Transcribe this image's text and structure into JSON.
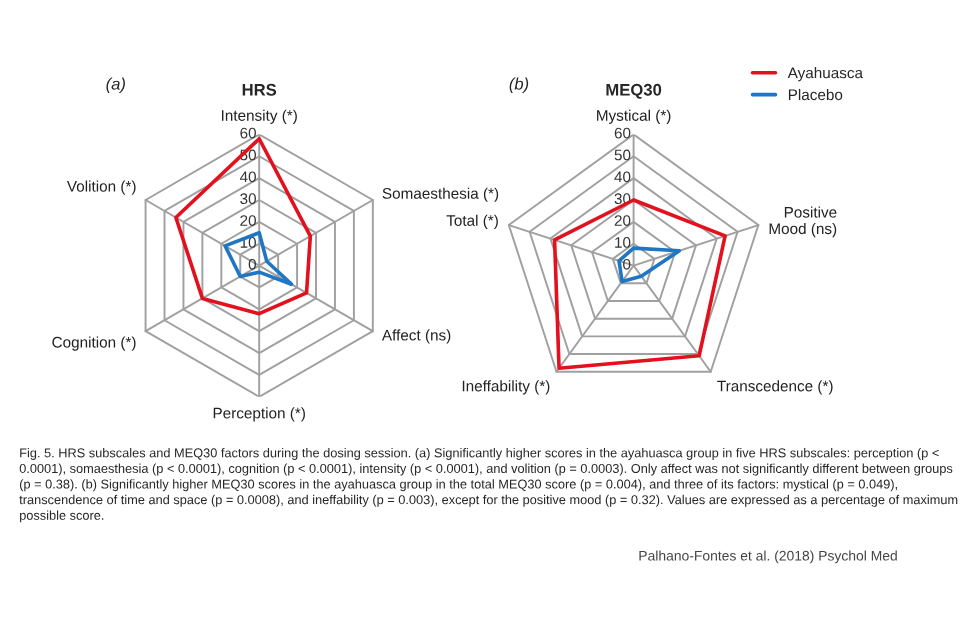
{
  "chart_data": [
    {
      "type": "radar",
      "title": "HRS",
      "categories": [
        "Intensity (*)",
        "Somaesthesia (*)",
        "Affect (ns)",
        "Perception (*)",
        "Cognition (*)",
        "Volition (*)"
      ],
      "series": [
        {
          "color": "#e3101e",
          "values": [
            58,
            27,
            25,
            22,
            30,
            44
          ]
        },
        {
          "color": "#1f77c4",
          "values": [
            15,
            4,
            17,
            3,
            10,
            18
          ]
        }
      ],
      "ylim": [
        0,
        60
      ],
      "yticks": [
        0,
        10,
        20,
        30,
        40,
        50,
        60
      ],
      "grid": true,
      "annotations": [
        "(a)"
      ]
    },
    {
      "type": "radar",
      "title": "MEQ30",
      "categories": [
        "Mystical (*)",
        "Positive\nMood (ns)",
        "Transcedence (*)",
        "Ineffability (*)",
        "Total (*)"
      ],
      "series": [
        {
          "name": "Ayahuasca",
          "color": "#e3101e",
          "values": [
            30,
            44,
            51,
            58,
            38
          ]
        },
        {
          "name": "Placebo",
          "color": "#1f77c4",
          "values": [
            8,
            22,
            6,
            9,
            7
          ]
        }
      ],
      "ylim": [
        0,
        60
      ],
      "yticks": [
        0,
        10,
        20,
        30,
        40,
        50,
        60
      ],
      "grid": true,
      "legend": "top right",
      "annotations": [
        "(b)",
        "Fig. 5. HRS subscales and MEQ30 factors during the dosing session. (a) Significantly higher scores in the ayahuasca group in five HRS subscales: perception (p < 0.0001), somaesthesia (p < 0.0001), cognition (p < 0.0001), intensity (p < 0.0001), and volition (p = 0.0003). Only affect was not significantly different between groups (p = 0.38). (b) Significantly higher MEQ30 scores in the ayahuasca group in the total MEQ30 score (p = 0.004), and three of its factors: mystical (p = 0.049), transcendence of time and space (p = 0.0008), and ineffability (p = 0.003), except for the positive mood (p = 0.32). Values are expressed as a percentage of maximum possible score.",
        "Palhano-Fontes et al. (2018) Psychol Med"
      ]
    }
  ]
}
